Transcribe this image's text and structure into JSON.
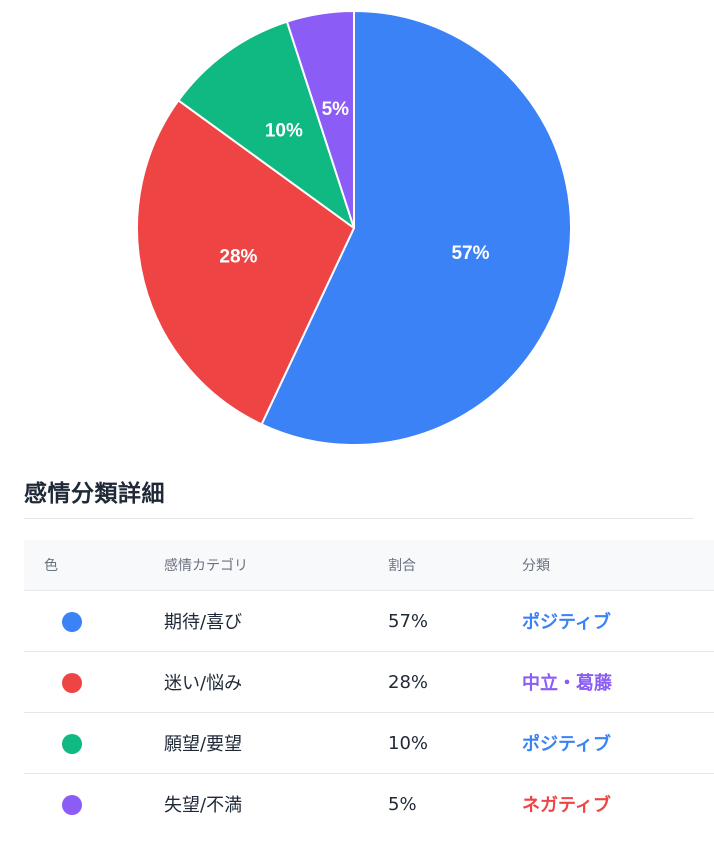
{
  "chart_data": {
    "type": "pie",
    "title": "",
    "slices": [
      {
        "label": "期待/喜び",
        "value": 57,
        "display": "57%",
        "color": "#3b82f6"
      },
      {
        "label": "迷い/悩み",
        "value": 28,
        "display": "28%",
        "color": "#ef4444"
      },
      {
        "label": "願望/要望",
        "value": 10,
        "display": "10%",
        "color": "#10b981"
      },
      {
        "label": "失望/不満",
        "value": 5,
        "display": "5%",
        "color": "#8b5cf6"
      }
    ],
    "start_angle": "top",
    "direction": "clockwise"
  },
  "detail": {
    "title": "感情分類詳細",
    "headers": {
      "color": "色",
      "category": "感情カテゴリ",
      "ratio": "割合",
      "classification": "分類"
    },
    "rows": [
      {
        "color": "#3b82f6",
        "category": "期待/喜び",
        "ratio": "57%",
        "classification": "ポジティブ",
        "class_color": "#3b82f6"
      },
      {
        "color": "#ef4444",
        "category": "迷い/悩み",
        "ratio": "28%",
        "classification": "中立・葛藤",
        "class_color": "#8b5cf6"
      },
      {
        "color": "#10b981",
        "category": "願望/要望",
        "ratio": "10%",
        "classification": "ポジティブ",
        "class_color": "#3b82f6"
      },
      {
        "color": "#8b5cf6",
        "category": "失望/不満",
        "ratio": "5%",
        "classification": "ネガティブ",
        "class_color": "#ef4444"
      }
    ]
  }
}
